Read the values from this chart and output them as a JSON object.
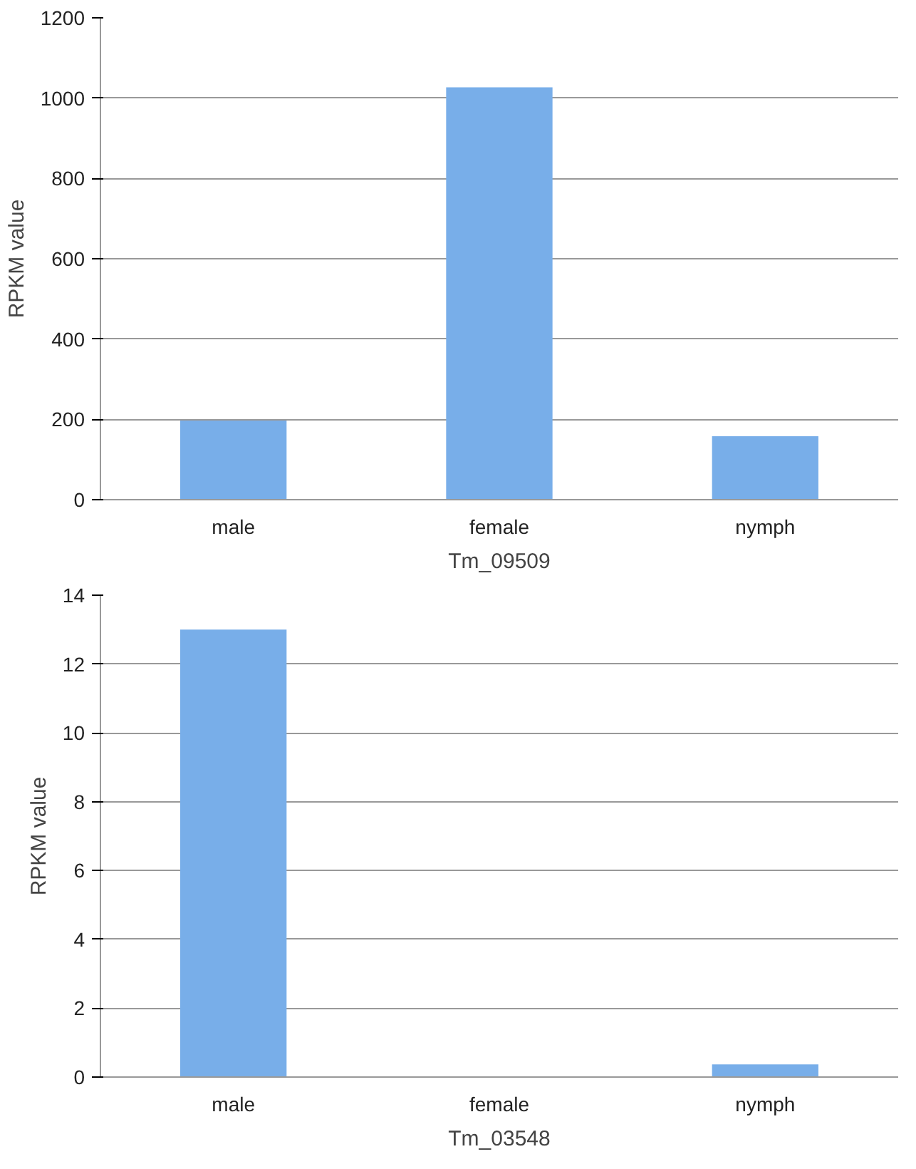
{
  "chart_data": [
    {
      "type": "bar",
      "categories": [
        "male",
        "female",
        "nymph"
      ],
      "values": [
        197,
        1027,
        158
      ],
      "color": "#78aee9",
      "xlabel": "Tm_09509",
      "ylabel": "RPKM value",
      "ylim": [
        0,
        1200
      ],
      "yticks": [
        0,
        200,
        400,
        600,
        800,
        1000,
        1200
      ],
      "grid": "y"
    },
    {
      "type": "bar",
      "categories": [
        "male",
        "female",
        "nymph"
      ],
      "values": [
        13.0,
        0,
        0.37
      ],
      "color": "#78aee9",
      "xlabel": "Tm_03548",
      "ylabel": "RPKM value",
      "ylim": [
        0,
        14
      ],
      "yticks": [
        0,
        2,
        4,
        6,
        8,
        10,
        12,
        14
      ],
      "grid": "y"
    }
  ]
}
